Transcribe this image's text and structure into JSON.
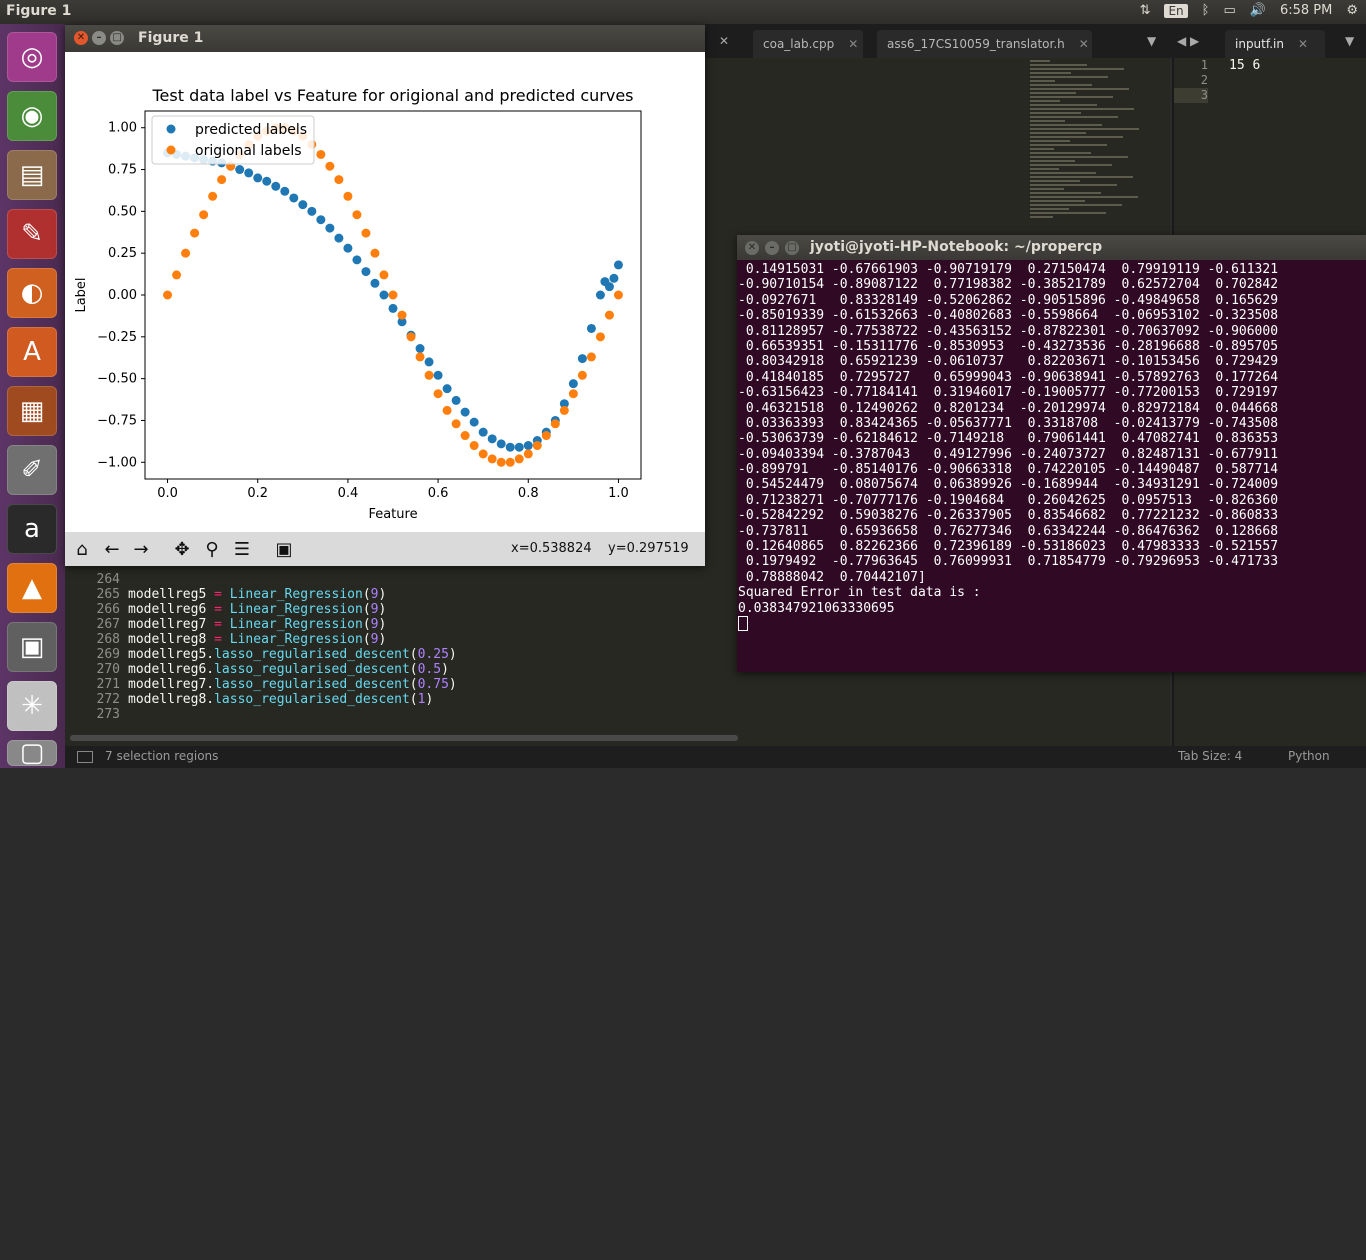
{
  "topbar": {
    "title": "Figure 1",
    "lang": "En",
    "time": "6:58 PM",
    "icons": [
      "network-icon",
      "keyboard-icon",
      "bluetooth-icon",
      "battery-icon",
      "volume-icon",
      "settings-icon"
    ]
  },
  "launcher": {
    "apps": [
      "ubuntu-dash",
      "chrome",
      "file-manager",
      "document-viewer",
      "firefox",
      "software-center",
      "impress",
      "text-editor",
      "amazon",
      "vlc",
      "workspace-switcher",
      "matplotlib-figure",
      "trash"
    ]
  },
  "editor": {
    "tabs": [
      {
        "label": "coa_lab.cpp"
      },
      {
        "label": "ass6_17CS10059_translator.h"
      },
      {
        "label": "inputf.in"
      }
    ],
    "line_numbers": [
      "264",
      "265",
      "266",
      "267",
      "268",
      "269",
      "270",
      "271",
      "272",
      "273"
    ],
    "code_lines": [
      {
        "text": ""
      },
      {
        "var": "modellreg5",
        "op": " = ",
        "call": "Linear_Regression",
        "arg": "9"
      },
      {
        "var": "modellreg6",
        "op": " = ",
        "call": "Linear_Regression",
        "arg": "9"
      },
      {
        "var": "modellreg7",
        "op": " = ",
        "call": "Linear_Regression",
        "arg": "9"
      },
      {
        "var": "modellreg8",
        "op": " = ",
        "call": "Linear_Regression",
        "arg": "9"
      },
      {
        "var": "modellreg5",
        "op": ".",
        "call": "lasso_regularised_descent",
        "arg": "0.25"
      },
      {
        "var": "modellreg6",
        "op": ".",
        "call": "lasso_regularised_descent",
        "arg": "0.5"
      },
      {
        "var": "modellreg7",
        "op": ".",
        "call": "lasso_regularised_descent",
        "arg": "0.75"
      },
      {
        "var": "modellreg8",
        "op": ".",
        "call": "lasso_regularised_descent",
        "arg": "1"
      },
      {
        "text": ""
      }
    ],
    "right_pane": {
      "line_numbers": [
        "1",
        "2",
        "3"
      ],
      "lines": [
        "15 6",
        "",
        ""
      ]
    }
  },
  "statusbar": {
    "selection": "7 selection regions",
    "tab_size": "Tab Size: 4",
    "syntax": "Python"
  },
  "figure": {
    "window_title": "Figure 1",
    "coords": {
      "x": "x=0.538824",
      "y": "y=0.297519"
    },
    "toolbar": [
      "home-icon",
      "back-icon",
      "forward-icon",
      "pan-icon",
      "zoom-icon",
      "configure-icon",
      "save-icon"
    ]
  },
  "chart_data": {
    "type": "scatter",
    "title": "Test data label vs Feature for origional and predicted curves",
    "xlabel": "Feature",
    "ylabel": "Label",
    "xlim": [
      -0.05,
      1.05
    ],
    "ylim": [
      -1.1,
      1.1
    ],
    "xticks": [
      "0.0",
      "0.2",
      "0.4",
      "0.6",
      "0.8",
      "1.0"
    ],
    "yticks": [
      "1.00",
      "0.75",
      "0.50",
      "0.25",
      "0.00",
      "−0.25",
      "−0.50",
      "−0.75",
      "−1.00"
    ],
    "ytick_values": [
      1.0,
      0.75,
      0.5,
      0.25,
      0.0,
      -0.25,
      -0.5,
      -0.75,
      -1.0
    ],
    "xtick_values": [
      0.0,
      0.2,
      0.4,
      0.6,
      0.8,
      1.0
    ],
    "legend_position": "top-left",
    "grid": false,
    "series": [
      {
        "name": "predicted labels",
        "color": "#1f77b4",
        "x": [
          0.0,
          0.02,
          0.04,
          0.06,
          0.08,
          0.1,
          0.12,
          0.14,
          0.16,
          0.18,
          0.2,
          0.22,
          0.24,
          0.26,
          0.28,
          0.3,
          0.32,
          0.34,
          0.36,
          0.38,
          0.4,
          0.42,
          0.44,
          0.46,
          0.48,
          0.5,
          0.52,
          0.54,
          0.56,
          0.58,
          0.6,
          0.62,
          0.64,
          0.66,
          0.68,
          0.7,
          0.72,
          0.74,
          0.76,
          0.78,
          0.8,
          0.82,
          0.84,
          0.86,
          0.88,
          0.9,
          0.92,
          0.94,
          0.96,
          0.97,
          0.98,
          0.99,
          1.0
        ],
        "y": [
          0.85,
          0.84,
          0.83,
          0.82,
          0.81,
          0.8,
          0.79,
          0.77,
          0.75,
          0.73,
          0.7,
          0.68,
          0.65,
          0.62,
          0.58,
          0.54,
          0.5,
          0.45,
          0.4,
          0.34,
          0.28,
          0.21,
          0.14,
          0.07,
          0.0,
          -0.08,
          -0.16,
          -0.24,
          -0.32,
          -0.4,
          -0.48,
          -0.56,
          -0.63,
          -0.7,
          -0.76,
          -0.82,
          -0.86,
          -0.89,
          -0.91,
          -0.91,
          -0.9,
          -0.87,
          -0.82,
          -0.75,
          -0.65,
          -0.53,
          -0.38,
          -0.2,
          0.0,
          0.08,
          0.05,
          0.1,
          0.18
        ]
      },
      {
        "name": "origional labels",
        "color": "#ff7f0e",
        "x": [
          0.0,
          0.02,
          0.04,
          0.06,
          0.08,
          0.1,
          0.12,
          0.14,
          0.16,
          0.18,
          0.2,
          0.22,
          0.24,
          0.26,
          0.28,
          0.3,
          0.32,
          0.34,
          0.36,
          0.38,
          0.4,
          0.42,
          0.44,
          0.46,
          0.48,
          0.5,
          0.52,
          0.54,
          0.56,
          0.58,
          0.6,
          0.62,
          0.64,
          0.66,
          0.68,
          0.7,
          0.72,
          0.74,
          0.76,
          0.78,
          0.8,
          0.82,
          0.84,
          0.86,
          0.88,
          0.9,
          0.92,
          0.94,
          0.96,
          0.98,
          1.0
        ],
        "y": [
          0.0,
          0.12,
          0.25,
          0.37,
          0.48,
          0.59,
          0.69,
          0.77,
          0.84,
          0.9,
          0.95,
          0.98,
          1.0,
          1.0,
          0.98,
          0.95,
          0.9,
          0.84,
          0.77,
          0.69,
          0.59,
          0.48,
          0.37,
          0.25,
          0.12,
          0.0,
          -0.12,
          -0.25,
          -0.37,
          -0.48,
          -0.59,
          -0.69,
          -0.77,
          -0.84,
          -0.9,
          -0.95,
          -0.98,
          -1.0,
          -1.0,
          -0.98,
          -0.95,
          -0.9,
          -0.84,
          -0.77,
          -0.69,
          -0.59,
          -0.48,
          -0.37,
          -0.25,
          -0.12,
          0.0
        ]
      }
    ]
  },
  "terminal": {
    "title": "jyoti@jyoti-HP-Notebook: ~/propercp",
    "lines": [
      " 0.14915031 -0.67661903 -0.90719179  0.27150474  0.79919119 -0.611321",
      "-0.90710154 -0.89087122  0.77198382 -0.38521789  0.62572704  0.702842",
      "-0.0927671   0.83328149 -0.52062862 -0.90515896 -0.49849658  0.165629",
      "-0.85019339 -0.61532663 -0.40802683 -0.5598664  -0.06953102 -0.323508",
      " 0.81128957 -0.77538722 -0.43563152 -0.87822301 -0.70637092 -0.906000",
      " 0.66539351 -0.15311776 -0.8530953  -0.43273536 -0.28196688 -0.895705",
      " 0.80342918  0.65921239 -0.0610737   0.82203671 -0.10153456  0.729429",
      " 0.41840185  0.7295727   0.65999043 -0.90638941 -0.57892763  0.177264",
      "-0.63156423 -0.77184141  0.31946017 -0.19005777 -0.77200153  0.729197",
      " 0.46321518  0.12490262  0.8201234  -0.20129974  0.82972184  0.044668",
      " 0.03363393  0.83424365 -0.05637771  0.3318708  -0.02413779 -0.743508",
      "-0.53063739 -0.62184612 -0.7149218   0.79061441  0.47082741  0.836353",
      "-0.09403394 -0.3787043   0.49127996 -0.24073727  0.82487131 -0.677911",
      "-0.899791   -0.85140176 -0.90663318  0.74220105 -0.14490487  0.587714",
      " 0.54524479  0.08075674  0.06389926 -0.1689944  -0.34931291 -0.724009",
      " 0.71238271 -0.70777176 -0.1904684   0.26042625  0.0957513  -0.826360",
      "-0.52842292  0.59038276 -0.26337905  0.83546682  0.77221232 -0.860833",
      "-0.737811    0.65936658  0.76277346  0.63342244 -0.86476362  0.128668",
      " 0.12640865  0.82262366  0.72396189 -0.53186023  0.47983333 -0.521557",
      " 0.1979492  -0.77963645  0.76099931  0.71854779 -0.79296953 -0.471733",
      " 0.78888042  0.70442107]",
      "Squared Error in test data is :",
      "0.038347921063330695"
    ]
  }
}
